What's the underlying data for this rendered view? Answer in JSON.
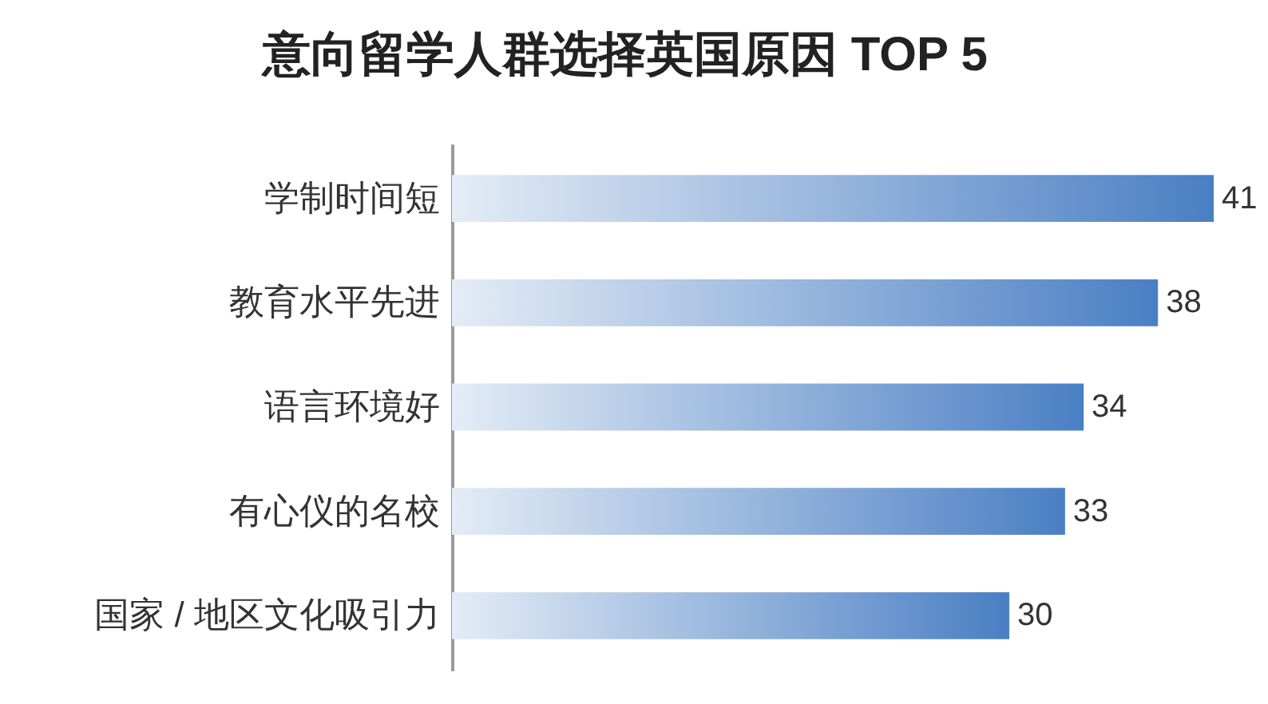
{
  "chart_data": {
    "type": "bar",
    "orientation": "horizontal",
    "title": "意向留学人群选择英国原因 TOP 5",
    "categories": [
      "学制时间短",
      "教育水平先进",
      "语言环境好",
      "有心仪的名校",
      "国家 / 地区文化吸引力"
    ],
    "values": [
      41,
      38,
      34,
      33,
      30
    ],
    "color": "#4a7fc4",
    "data_labels": true,
    "tick_labels": "y"
  }
}
